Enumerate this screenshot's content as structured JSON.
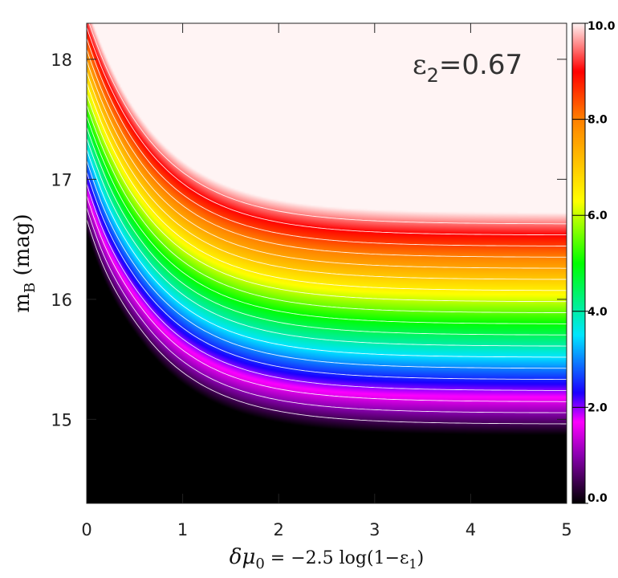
{
  "chart_data": {
    "type": "heatmap",
    "xlabel": "δμ₀ = −2.5 log(1−ε₁)",
    "xlabel_parts": {
      "delta_mu": "δμ",
      "mu_sub": "0",
      "rest1": " = −2.5  log(1−ε",
      "eps_sub": "1",
      "rest2": ")"
    },
    "ylabel": "m_B (mag)",
    "ylabel_parts": {
      "m": "m",
      "sub": "B",
      "rest": " (mag)"
    },
    "annotation": "ε₂=0.67",
    "annotation_parts": {
      "eps": "ε",
      "sub": "2",
      "rest": "=0.67"
    },
    "xlim": [
      0,
      5
    ],
    "ylim": [
      14.3,
      18.3
    ],
    "x_ticks": [
      0,
      1,
      2,
      3,
      4,
      5
    ],
    "x_tick_labels": [
      "0",
      "1",
      "2",
      "3",
      "4",
      "5"
    ],
    "y_ticks": [
      15,
      16,
      17,
      18
    ],
    "y_tick_labels": [
      "15",
      "16",
      "17",
      "18"
    ],
    "colorbar": {
      "range": [
        0,
        10
      ],
      "ticks": [
        0,
        2,
        4,
        6,
        8,
        10
      ],
      "tick_labels": [
        "0.0",
        "2.0",
        "4.0",
        "6.0",
        "8.0",
        "10.0"
      ],
      "color_stops": [
        {
          "value": 0,
          "color": "#000000"
        },
        {
          "value": 1,
          "color": "#8a00b0"
        },
        {
          "value": 1.7,
          "color": "#ff00ff"
        },
        {
          "value": 2.3,
          "color": "#1a00ff"
        },
        {
          "value": 3.5,
          "color": "#00e6ff"
        },
        {
          "value": 5,
          "color": "#00ff00"
        },
        {
          "value": 6.3,
          "color": "#ffff00"
        },
        {
          "value": 8,
          "color": "#ff8000"
        },
        {
          "value": 9,
          "color": "#ff0000"
        },
        {
          "value": 10,
          "color": "#fff4f4"
        }
      ]
    },
    "contour_interval": 0.5,
    "grid": false,
    "saturated_region": "upper-left, value ≥ 10"
  }
}
